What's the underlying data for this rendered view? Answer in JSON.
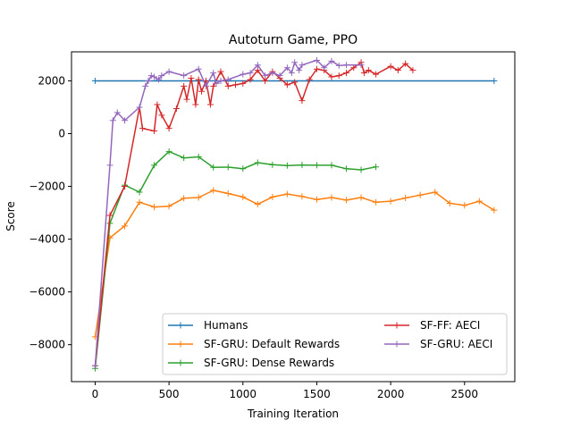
{
  "chart_data": {
    "type": "line",
    "title": "Autoturn Game, PPO",
    "xlabel": "Training Iteration",
    "ylabel": "Score",
    "xlim": [
      -160,
      2840
    ],
    "ylim": [
      -9400,
      3100
    ],
    "xticks": [
      0,
      500,
      1000,
      1500,
      2000,
      2500
    ],
    "xtick_labels": [
      "0",
      "500",
      "1000",
      "1500",
      "2000",
      "2500"
    ],
    "yticks": [
      -8000,
      -6000,
      -4000,
      -2000,
      0,
      2000
    ],
    "ytick_labels": [
      "−8000",
      "−6000",
      "−4000",
      "−2000",
      "0",
      "2000"
    ],
    "grid": false,
    "legend_position": "lower-right",
    "series": [
      {
        "name": "Humans",
        "color": "#1f77b4",
        "x": [
          0,
          2700
        ],
        "y": [
          2000,
          2000
        ]
      },
      {
        "name": "SF-GRU: Default Rewards",
        "color": "#ff7f0e",
        "x": [
          0,
          100,
          200,
          300,
          400,
          500,
          600,
          700,
          800,
          900,
          1000,
          1100,
          1200,
          1300,
          1400,
          1500,
          1600,
          1700,
          1800,
          1900,
          2000,
          2100,
          2200,
          2300,
          2400,
          2500,
          2600,
          2700
        ],
        "y": [
          -7700,
          -3950,
          -3500,
          -2600,
          -2780,
          -2750,
          -2450,
          -2420,
          -2150,
          -2270,
          -2400,
          -2680,
          -2400,
          -2290,
          -2380,
          -2500,
          -2420,
          -2520,
          -2420,
          -2600,
          -2560,
          -2440,
          -2330,
          -2220,
          -2640,
          -2720,
          -2560,
          -2900
        ]
      },
      {
        "name": "SF-GRU: Dense Rewards",
        "color": "#2ca02c",
        "x": [
          0,
          100,
          200,
          300,
          400,
          500,
          600,
          700,
          800,
          900,
          1000,
          1100,
          1200,
          1300,
          1400,
          1500,
          1600,
          1700,
          1800,
          1900
        ],
        "y": [
          -8900,
          -3400,
          -1950,
          -2220,
          -1200,
          -680,
          -920,
          -880,
          -1280,
          -1270,
          -1330,
          -1100,
          -1180,
          -1210,
          -1190,
          -1200,
          -1200,
          -1330,
          -1370,
          -1260
        ]
      },
      {
        "name": "SF-FF: AECI",
        "color": "#d62728",
        "x": [
          0,
          100,
          200,
          300,
          320,
          400,
          420,
          450,
          500,
          550,
          600,
          620,
          650,
          680,
          700,
          720,
          750,
          780,
          800,
          850,
          900,
          950,
          1000,
          1050,
          1100,
          1150,
          1200,
          1250,
          1300,
          1350,
          1400,
          1450,
          1500,
          1550,
          1600,
          1650,
          1700,
          1750,
          1800,
          1820,
          1850,
          1900,
          2000,
          2050,
          2100,
          2150
        ],
        "y": [
          -8800,
          -3100,
          -2000,
          1000,
          200,
          100,
          1100,
          700,
          200,
          950,
          1800,
          1300,
          2100,
          1100,
          2050,
          1600,
          2000,
          1100,
          1800,
          2350,
          1800,
          1850,
          1900,
          2050,
          2400,
          2000,
          2350,
          2100,
          1850,
          1950,
          1250,
          2050,
          2450,
          2400,
          2150,
          2200,
          2300,
          2500,
          2700,
          2300,
          2400,
          2250,
          2550,
          2400,
          2650,
          2400
        ]
      },
      {
        "name": "SF-GRU: AECI",
        "color": "#9467bd",
        "x": [
          0,
          100,
          120,
          150,
          200,
          300,
          340,
          360,
          380,
          400,
          430,
          450,
          500,
          600,
          700,
          750,
          800,
          820,
          850,
          900,
          1000,
          1050,
          1100,
          1150,
          1200,
          1250,
          1300,
          1330,
          1350,
          1380,
          1400,
          1500,
          1550,
          1600,
          1650,
          1700,
          1800
        ],
        "y": [
          -8800,
          -1200,
          500,
          800,
          500,
          1000,
          1800,
          2000,
          2200,
          2150,
          2050,
          2200,
          2350,
          2200,
          2450,
          1800,
          2300,
          1900,
          2000,
          2050,
          2250,
          2300,
          2600,
          2200,
          2300,
          2200,
          2500,
          2300,
          2700,
          2400,
          2600,
          2780,
          2500,
          2750,
          2580,
          2600,
          2600
        ]
      }
    ],
    "legend": {
      "left_column": [
        "Humans",
        "SF-GRU: Default Rewards",
        "SF-GRU: Dense Rewards"
      ],
      "right_column": [
        "SF-FF: AECI",
        "SF-GRU: AECI"
      ]
    }
  }
}
